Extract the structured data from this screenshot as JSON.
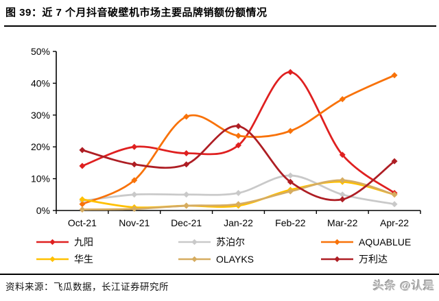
{
  "figure": {
    "title": "图 39：近 7 个月抖音破壁机市场主要品牌销额份额情况",
    "source_note": "资料来源：飞瓜数据，长江证券研究所",
    "watermark": "头条 @认是"
  },
  "chart_data": {
    "type": "line",
    "title": "近7个月抖音破壁机市场主要品牌销额份额情况",
    "categories": [
      "Oct-21",
      "Nov-21",
      "Dec-21",
      "Jan-22",
      "Feb-22",
      "Mar-22",
      "Apr-22"
    ],
    "series": [
      {
        "name": "九阳",
        "color": "#DF2020",
        "values": [
          14,
          20,
          18,
          20.5,
          43.5,
          17.5,
          5.5
        ]
      },
      {
        "name": "苏泊尔",
        "color": "#C9C9C9",
        "values": [
          3,
          5,
          5,
          5.5,
          11,
          5,
          2
        ]
      },
      {
        "name": "AQUABLUE",
        "color": "#F87209",
        "values": [
          2,
          9.5,
          29.5,
          23.5,
          25,
          35,
          42.5
        ]
      },
      {
        "name": "华生",
        "color": "#FFC000",
        "values": [
          3.5,
          1,
          1.5,
          1.5,
          6.5,
          9,
          5
        ]
      },
      {
        "name": "OLAYKS",
        "color": "#D6AC60",
        "values": [
          0.3,
          0.5,
          1.5,
          2,
          6,
          9.5,
          5
        ]
      },
      {
        "name": "万利达",
        "color": "#AE1E24",
        "values": [
          19,
          14.5,
          14.5,
          26.5,
          9,
          3.5,
          15.5
        ]
      }
    ],
    "xlabel": "",
    "ylabel": "",
    "ylim": [
      0,
      50
    ],
    "yticks": [
      "0%",
      "10%",
      "20%",
      "30%",
      "40%",
      "50%"
    ],
    "grid": false,
    "smooth": true,
    "marker": "diamond",
    "legend_position": "bottom",
    "unit": "percent"
  }
}
